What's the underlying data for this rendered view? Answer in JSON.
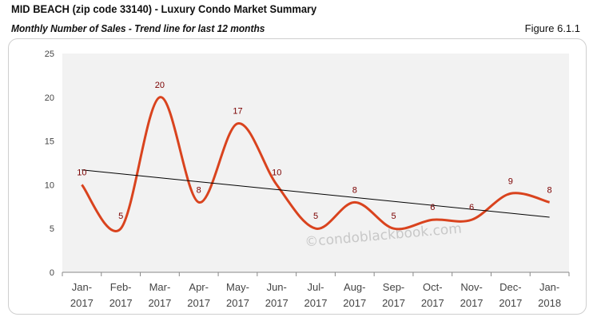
{
  "header": {
    "title": "MID BEACH (zip code 33140) - Luxury Condo Market Summary",
    "subtitle": "Monthly Number of Sales - Trend line for last 12 months",
    "figure_label": "Figure 6.1.1"
  },
  "watermark": "©condoblackbook.com",
  "colors": {
    "line": "#D9431E",
    "trend": "#000000",
    "plot_bg": "#F2F2F2",
    "data_label": "#7B0000"
  },
  "chart_data": {
    "type": "line",
    "categories": [
      [
        "Jan-",
        "2017"
      ],
      [
        "Feb-",
        "2017"
      ],
      [
        "Mar-",
        "2017"
      ],
      [
        "Apr-",
        "2017"
      ],
      [
        "May-",
        "2017"
      ],
      [
        "Jun-",
        "2017"
      ],
      [
        "Jul-",
        "2017"
      ],
      [
        "Aug-",
        "2017"
      ],
      [
        "Sep-",
        "2017"
      ],
      [
        "Oct-",
        "2017"
      ],
      [
        "Nov-",
        "2017"
      ],
      [
        "Dec-",
        "2017"
      ],
      [
        "Jan-",
        "2018"
      ]
    ],
    "values": [
      10,
      5,
      20,
      8,
      17,
      10,
      5,
      8,
      5,
      6,
      6,
      9,
      8
    ],
    "data_labels": [
      "10",
      "5",
      "20",
      "8",
      "17",
      "10",
      "5",
      "8",
      "5",
      "6",
      "6",
      "9",
      "8"
    ],
    "trendline": {
      "type": "linear",
      "start": 11.7,
      "end": 6.3
    },
    "smoothed": true,
    "ylim": [
      0,
      25
    ],
    "yticks": [
      "0",
      "5",
      "10",
      "15",
      "20",
      "25"
    ],
    "grid": false,
    "legend": "none"
  }
}
